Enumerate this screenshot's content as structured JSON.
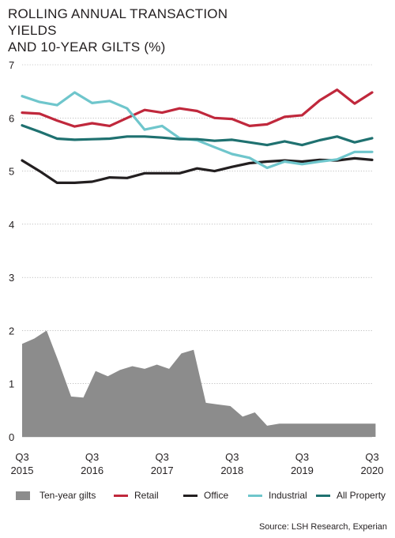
{
  "title": "ROLLING ANNUAL TRANSACTION YIELDS\nAND 10-YEAR GILTS (%)",
  "source": "Source: LSH Research, Experian",
  "colors": {
    "Ten-year gilts": "#8c8c8c",
    "Retail": "#c0283c",
    "Office": "#231f20",
    "Industrial": "#6fc6cc",
    "All Property": "#1f7170"
  },
  "chart_data": {
    "type": "line",
    "title": "ROLLING ANNUAL TRANSACTION YIELDS AND 10-YEAR GILTS (%)",
    "xlabel": "",
    "ylabel": "",
    "ylim": [
      0,
      7
    ],
    "yticks": [
      0,
      1,
      2,
      3,
      4,
      5,
      6,
      7
    ],
    "grid": "horizontal",
    "legend_position": "bottom",
    "x": [
      "Q3 2015",
      "Q4 2015",
      "Q1 2016",
      "Q2 2016",
      "Q3 2016",
      "Q4 2016",
      "Q1 2017",
      "Q2 2017",
      "Q3 2017",
      "Q4 2017",
      "Q1 2018",
      "Q2 2018",
      "Q3 2018",
      "Q4 2018",
      "Q1 2019",
      "Q2 2019",
      "Q3 2019",
      "Q4 2019",
      "Q1 2020",
      "Q2 2020",
      "Q3 2020"
    ],
    "x_tick_labels": [
      {
        "index": 0,
        "line1": "Q3",
        "line2": "2015"
      },
      {
        "index": 4,
        "line1": "Q3",
        "line2": "2016"
      },
      {
        "index": 8,
        "line1": "Q3",
        "line2": "2017"
      },
      {
        "index": 12,
        "line1": "Q3",
        "line2": "2018"
      },
      {
        "index": 16,
        "line1": "Q3",
        "line2": "2019"
      },
      {
        "index": 20,
        "line1": "Q3",
        "line2": "2020"
      }
    ],
    "area_series": {
      "name": "Ten-year gilts",
      "x": [
        0,
        0.7,
        1.4,
        2.1,
        2.8,
        3.5,
        4.2,
        4.9,
        5.6,
        6.3,
        7.0,
        7.7,
        8.4,
        9.1,
        9.8,
        10.5,
        11.2,
        11.9,
        12.6,
        13.3,
        14.0,
        14.7,
        15.4,
        16.1,
        16.8,
        17.5,
        18.2,
        18.9,
        19.6,
        20.2
      ],
      "values": [
        1.75,
        1.85,
        2.0,
        1.4,
        0.76,
        0.74,
        1.24,
        1.14,
        1.26,
        1.33,
        1.28,
        1.36,
        1.28,
        1.57,
        1.64,
        0.64,
        0.61,
        0.58,
        0.38,
        0.46,
        0.21,
        0.25,
        0.25,
        0.25,
        0.25,
        0.25,
        0.25,
        0.25,
        0.25,
        0.25
      ]
    },
    "series": [
      {
        "name": "Retail",
        "values": [
          6.1,
          6.08,
          5.95,
          5.84,
          5.9,
          5.85,
          6.0,
          6.15,
          6.1,
          6.18,
          6.13,
          6.0,
          5.98,
          5.85,
          5.88,
          6.02,
          6.05,
          6.33,
          6.53,
          6.27,
          6.48
        ]
      },
      {
        "name": "Office",
        "values": [
          5.2,
          5.0,
          4.78,
          4.78,
          4.8,
          4.88,
          4.87,
          4.96,
          4.96,
          4.96,
          5.05,
          5.0,
          5.08,
          5.15,
          5.18,
          5.2,
          5.18,
          5.21,
          5.2,
          5.24,
          5.21
        ]
      },
      {
        "name": "Industrial",
        "values": [
          6.41,
          6.3,
          6.24,
          6.48,
          6.28,
          6.32,
          6.18,
          5.78,
          5.85,
          5.62,
          5.58,
          5.45,
          5.32,
          5.25,
          5.06,
          5.18,
          5.13,
          5.18,
          5.22,
          5.36,
          5.36
        ]
      },
      {
        "name": "All Property",
        "values": [
          5.86,
          5.74,
          5.61,
          5.59,
          5.6,
          5.61,
          5.65,
          5.65,
          5.63,
          5.6,
          5.6,
          5.57,
          5.59,
          5.54,
          5.49,
          5.56,
          5.49,
          5.58,
          5.65,
          5.54,
          5.62
        ]
      }
    ],
    "legend": [
      "Ten-year gilts",
      "Retail",
      "Office",
      "Industrial",
      "All Property"
    ]
  }
}
